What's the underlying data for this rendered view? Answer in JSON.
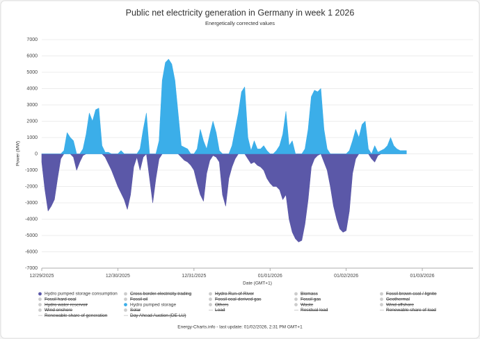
{
  "chart_data": {
    "type": "area",
    "title": "Public net electricity generation in Germany in week 1 2026",
    "subtitle": "Energetically corrected values",
    "y_label": "Power (MW)",
    "x_label": "Date (GMT+1)",
    "footer": "Energy-Charts.info - last update: 01/02/2026, 2:31 PM GMT+1",
    "x": [
      0,
      1,
      2,
      3,
      4,
      5,
      6,
      7,
      8,
      9,
      10,
      11,
      12,
      13,
      14,
      15,
      16,
      17,
      18,
      19,
      20,
      21,
      22,
      23,
      24,
      25,
      26,
      27,
      28,
      29,
      30,
      31,
      32,
      33,
      34,
      35,
      36,
      37,
      38,
      39,
      40,
      41,
      42,
      43,
      44,
      45,
      46,
      47,
      48,
      49,
      50,
      51,
      52,
      53,
      54,
      55,
      56,
      57,
      58,
      59,
      60,
      61,
      62,
      63,
      64,
      65,
      66,
      67,
      68,
      69,
      70,
      71,
      72,
      73,
      74,
      75,
      76,
      77,
      78,
      79,
      80,
      81,
      82,
      83,
      84,
      85,
      86,
      87,
      88,
      89,
      90,
      91,
      92,
      93,
      94,
      95,
      96,
      97,
      98,
      99,
      100,
      101,
      102,
      103,
      104,
      105,
      106,
      107,
      108,
      109,
      110,
      111,
      112,
      113,
      114,
      115
    ],
    "series": [
      {
        "name": "Hydro pumped storage consumption",
        "color": "#5b58a8",
        "values": [
          -500,
          -2200,
          -3500,
          -3200,
          -2800,
          -1500,
          -300,
          0,
          0,
          0,
          -200,
          -1000,
          -500,
          -100,
          0,
          0,
          0,
          0,
          0,
          0,
          -200,
          -600,
          -1000,
          -1500,
          -2000,
          -2400,
          -2800,
          -3400,
          -2500,
          -800,
          -200,
          -1000,
          -200,
          0,
          -1500,
          -3000,
          -1500,
          -300,
          0,
          0,
          0,
          0,
          0,
          0,
          -200,
          -400,
          -500,
          -700,
          -1000,
          -1800,
          -2500,
          -2900,
          -1200,
          -400,
          -100,
          -200,
          -500,
          -2500,
          -3200,
          -1500,
          -800,
          -300,
          0,
          0,
          0,
          -300,
          -600,
          -500,
          -700,
          -800,
          -1000,
          -1500,
          -1800,
          -2000,
          -2000,
          -2200,
          -2800,
          -2500,
          -4000,
          -4800,
          -5200,
          -5400,
          -5300,
          -4300,
          -2800,
          -800,
          -300,
          -100,
          0,
          -500,
          -1000,
          -2000,
          -3200,
          -4000,
          -4600,
          -4800,
          -4700,
          -3500,
          -1200,
          -300,
          0,
          0,
          0,
          0,
          -300,
          -500,
          -100,
          0,
          0,
          0,
          0,
          0,
          0,
          0,
          0,
          0
        ]
      },
      {
        "name": "Hydro pumped storage",
        "color": "#3baee9",
        "values": [
          0,
          0,
          0,
          0,
          0,
          0,
          0,
          200,
          1300,
          1000,
          800,
          0,
          0,
          300,
          1200,
          2500,
          2000,
          2700,
          2800,
          500,
          100,
          100,
          0,
          0,
          0,
          200,
          0,
          0,
          0,
          0,
          0,
          300,
          1500,
          2500,
          0,
          0,
          0,
          800,
          4500,
          5600,
          5800,
          5500,
          4500,
          2500,
          500,
          400,
          300,
          0,
          0,
          300,
          1500,
          800,
          300,
          1200,
          2000,
          1300,
          200,
          0,
          0,
          0,
          500,
          1500,
          2500,
          3800,
          4100,
          1000,
          200,
          800,
          300,
          300,
          500,
          200,
          0,
          0,
          200,
          500,
          1200,
          2600,
          500,
          800,
          0,
          0,
          0,
          300,
          1500,
          3500,
          3900,
          3800,
          4000,
          1500,
          300,
          0,
          0,
          0,
          0,
          0,
          0,
          200,
          800,
          1500,
          1000,
          1800,
          2000,
          300,
          0,
          500,
          100,
          200,
          300,
          500,
          1000,
          500,
          300,
          200,
          200,
          200
        ]
      }
    ],
    "legend_inactive": [
      {
        "name": "Cross border electricity trading",
        "marker": "dot"
      },
      {
        "name": "Hydro Run-of-River",
        "marker": "dot"
      },
      {
        "name": "Biomass",
        "marker": "dot"
      },
      {
        "name": "Fossil brown coal / lignite",
        "marker": "dot"
      },
      {
        "name": "Fossil hard coal",
        "marker": "dot"
      },
      {
        "name": "Fossil oil",
        "marker": "dot"
      },
      {
        "name": "Fossil coal-derived gas",
        "marker": "dot"
      },
      {
        "name": "Fossil gas",
        "marker": "dot"
      },
      {
        "name": "Geothermal",
        "marker": "dot"
      },
      {
        "name": "Hydro water reservoir",
        "marker": "dot"
      },
      {
        "name": "Others",
        "marker": "dot"
      },
      {
        "name": "Waste",
        "marker": "dot"
      },
      {
        "name": "Wind offshore",
        "marker": "dot"
      },
      {
        "name": "Wind onshore",
        "marker": "dot"
      },
      {
        "name": "Solar",
        "marker": "dot"
      },
      {
        "name": "Load",
        "marker": "line"
      },
      {
        "name": "Residual load",
        "marker": "line"
      },
      {
        "name": "Renewable share of load",
        "marker": "line"
      },
      {
        "name": "Renewable share of generation",
        "marker": "line"
      },
      {
        "name": "Day Ahead Auction (DE-LU)",
        "marker": "line"
      }
    ],
    "legend_order": [
      0,
      "i0",
      "i1",
      "i2",
      "i3",
      "i4",
      "i5",
      "i6",
      "i7",
      "i8",
      "i9",
      1,
      "i10",
      "i11",
      "i12",
      "i13",
      "i14",
      "i15",
      "i16",
      "i17",
      "i18",
      "i19"
    ],
    "xlim": [
      0,
      136
    ],
    "xticks": [
      {
        "value": 0,
        "label": "12/29/2025"
      },
      {
        "value": 24,
        "label": "12/30/2025"
      },
      {
        "value": 48,
        "label": "12/31/2025"
      },
      {
        "value": 72,
        "label": "01/01/2026"
      },
      {
        "value": 96,
        "label": "01/02/2026"
      },
      {
        "value": 120,
        "label": "01/03/2026"
      }
    ],
    "ylim": [
      -7000,
      7000
    ],
    "yticks": [
      -7000,
      -6000,
      -5000,
      -4000,
      -3000,
      -2000,
      -1000,
      0,
      1000,
      2000,
      3000,
      4000,
      5000,
      6000,
      7000
    ],
    "grid": true
  }
}
